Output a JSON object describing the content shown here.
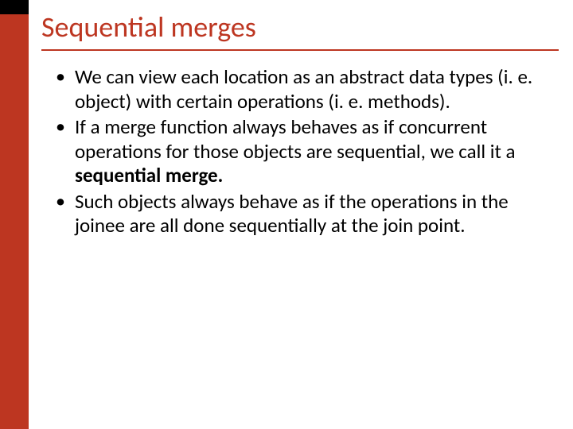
{
  "slide": {
    "title": "Sequential merges",
    "title_color": "#bd3621",
    "underline_color": "#bd3621",
    "sidebar_top_color": "#000000",
    "sidebar_main_color": "#bd3621",
    "background_color": "#ffffff",
    "text_color": "#000000",
    "title_fontsize": 36,
    "body_fontsize": 25,
    "bullets": [
      {
        "text": "We can view each location as an abstract data types (i. e. object) with certain operations (i. e. methods)."
      },
      {
        "prefix": "If a merge function always behaves as if concurrent operations for those objects are sequential, we call it a ",
        "bold": "sequential merge.",
        "suffix": ""
      },
      {
        "text": "Such objects always behave as if the operations in the joinee are all done sequentially at the join point."
      }
    ]
  }
}
